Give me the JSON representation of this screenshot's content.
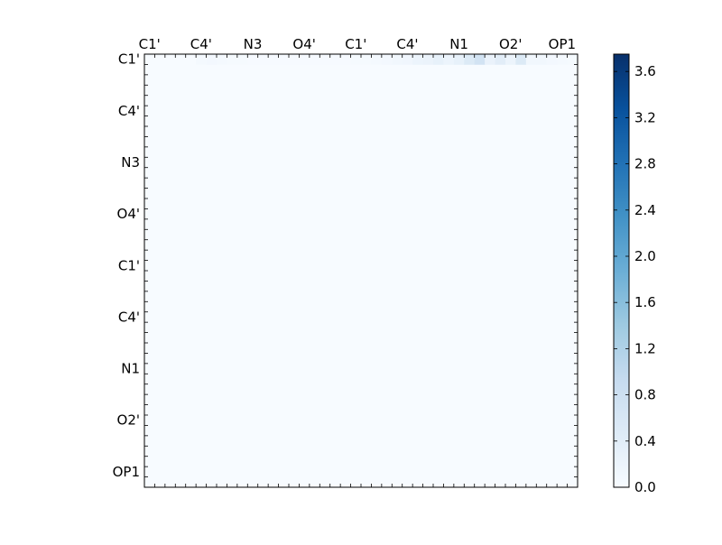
{
  "chart_data": {
    "type": "heatmap",
    "title": "",
    "xlabel": "",
    "ylabel": "",
    "grid_size": [
      42,
      42
    ],
    "x_tick_labels": [
      "C1'",
      "C4'",
      "N3",
      "O4'",
      "C1'",
      "C4'",
      "N1",
      "O2'",
      "OP1"
    ],
    "y_tick_labels": [
      "C1'",
      "C4'",
      "N3",
      "O4'",
      "C1'",
      "C4'",
      "N1",
      "O2'",
      "OP1"
    ],
    "colormap": [
      "#f7fbff",
      "#deebf7",
      "#c6dbef",
      "#9ecae1",
      "#6baed6",
      "#4292c6",
      "#2171b5",
      "#08519c",
      "#08306b"
    ],
    "colorbar": {
      "min": 0.0,
      "max": 3.75,
      "ticks": [
        "0.0",
        "0.4",
        "0.8",
        "1.2",
        "1.6",
        "2.0",
        "2.4",
        "2.8",
        "3.2",
        "3.6"
      ]
    },
    "rows": [
      "0,0,5:0.06,6:0.08,7:0.06,8:0.04,9:0.03,10:0.02,11:0.02,12:0.02,13:0.02,14:0.02,15:0.02,16:0.02,17:0.02,18:0.02,19:0.02,20:0.03,21:0.03,22:0.05,23:0.08,24:0.12,25:0.14,26:0.2,27:0.22,28:0.3,29:0.2,30:0.3,31:0.5,32:0.7,33:0.25,34:0.4,35:0.2,36:0.5,37:0.12,38:0.12,39:0.08,40:0.06,41:0.04"
    ]
  }
}
